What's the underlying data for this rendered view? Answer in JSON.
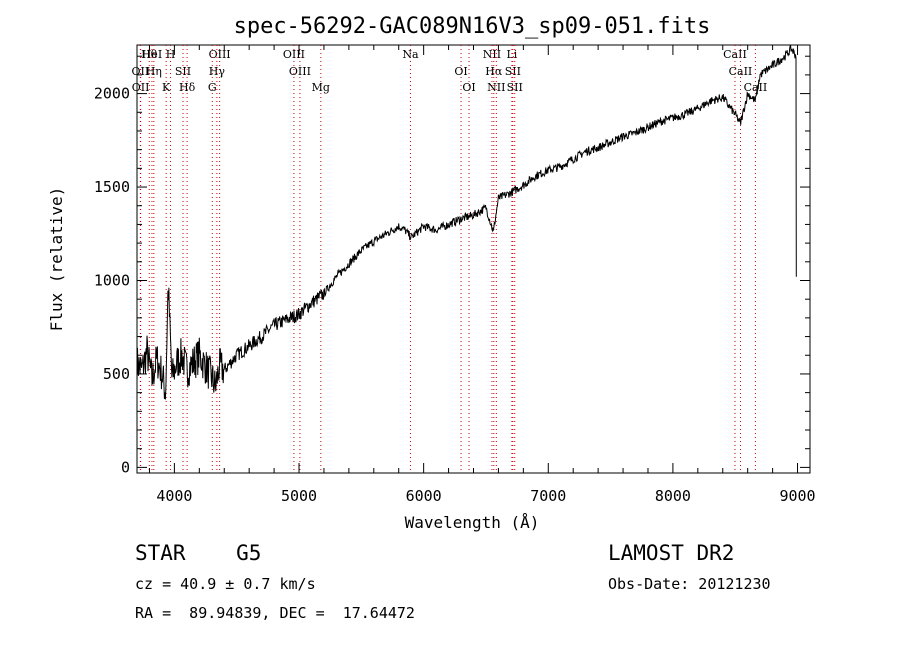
{
  "title": "spec-56292-GAC089N16V3_sp09-051.fits",
  "info": {
    "object": "STAR    G5",
    "survey": "LAMOST DR2",
    "cz": "cz = 40.9 ± 0.7 km/s",
    "obs_date": "Obs-Date: 20121230",
    "coords": "RA =  89.94839, DEC =  17.64472"
  },
  "colors": {
    "line": "#000000",
    "marker": "#cc0000"
  },
  "chart_data": {
    "type": "line",
    "title": "spec-56292-GAC089N16V3_sp09-051.fits",
    "xlabel": "Wavelength (Å)",
    "ylabel": "Flux (relative)",
    "xlim": [
      3700,
      9100
    ],
    "ylim": [
      -30,
      2260
    ],
    "xticks": [
      4000,
      5000,
      6000,
      7000,
      8000,
      9000
    ],
    "yticks": [
      0,
      500,
      1000,
      1500,
      2000
    ],
    "grid": false,
    "x": [
      3700,
      3740,
      3780,
      3820,
      3860,
      3900,
      3930,
      3950,
      3980,
      4020,
      4060,
      4100,
      4150,
      4200,
      4250,
      4300,
      4330,
      4360,
      4400,
      4450,
      4500,
      4600,
      4700,
      4800,
      4900,
      5000,
      5100,
      5200,
      5300,
      5400,
      5500,
      5600,
      5700,
      5800,
      5850,
      5900,
      6000,
      6100,
      6200,
      6300,
      6400,
      6500,
      6560,
      6600,
      6700,
      6800,
      6900,
      7000,
      7100,
      7200,
      7300,
      7400,
      7500,
      7600,
      7700,
      7800,
      7900,
      8000,
      8100,
      8200,
      8300,
      8400,
      8498,
      8542,
      8600,
      8662,
      8700,
      8800,
      8900,
      8950,
      8990
    ],
    "y": [
      560,
      520,
      620,
      470,
      580,
      500,
      400,
      980,
      480,
      560,
      600,
      520,
      560,
      600,
      540,
      480,
      430,
      540,
      520,
      560,
      600,
      650,
      700,
      760,
      790,
      820,
      880,
      930,
      1020,
      1090,
      1160,
      1210,
      1250,
      1290,
      1270,
      1230,
      1290,
      1270,
      1300,
      1330,
      1350,
      1390,
      1260,
      1440,
      1470,
      1510,
      1560,
      1590,
      1610,
      1650,
      1690,
      1710,
      1740,
      1770,
      1790,
      1820,
      1850,
      1870,
      1890,
      1920,
      1960,
      1980,
      1890,
      1840,
      2000,
      1960,
      2100,
      2150,
      2200,
      2240,
      2200
    ],
    "line_markers": [
      {
        "label": "Hθ",
        "wavelength": 3798
      },
      {
        "label": "OII",
        "wavelength": 3727
      },
      {
        "label": "OII",
        "wavelength": 3729
      },
      {
        "label": "HeI",
        "wavelength": 3820
      },
      {
        "label": "Hη",
        "wavelength": 3835
      },
      {
        "label": "K",
        "wavelength": 3934
      },
      {
        "label": "H",
        "wavelength": 3969
      },
      {
        "label": "SII",
        "wavelength": 4069
      },
      {
        "label": "Hδ",
        "wavelength": 4102
      },
      {
        "label": "OIII",
        "wavelength": 4363
      },
      {
        "label": "Hγ",
        "wavelength": 4341
      },
      {
        "label": "G",
        "wavelength": 4304
      },
      {
        "label": "OIII",
        "wavelength": 4959
      },
      {
        "label": "OIII",
        "wavelength": 5007
      },
      {
        "label": "Mg",
        "wavelength": 5175
      },
      {
        "label": "Na",
        "wavelength": 5894
      },
      {
        "label": "OI",
        "wavelength": 6300
      },
      {
        "label": "OI",
        "wavelength": 6364
      },
      {
        "label": "NII",
        "wavelength": 6548
      },
      {
        "label": "Hα",
        "wavelength": 6563
      },
      {
        "label": "NII",
        "wavelength": 6583
      },
      {
        "label": "Li",
        "wavelength": 6708
      },
      {
        "label": "SII",
        "wavelength": 6716
      },
      {
        "label": "SII",
        "wavelength": 6731
      },
      {
        "label": "CaII",
        "wavelength": 8498
      },
      {
        "label": "CaII",
        "wavelength": 8542
      },
      {
        "label": "CaII",
        "wavelength": 8662
      }
    ]
  }
}
